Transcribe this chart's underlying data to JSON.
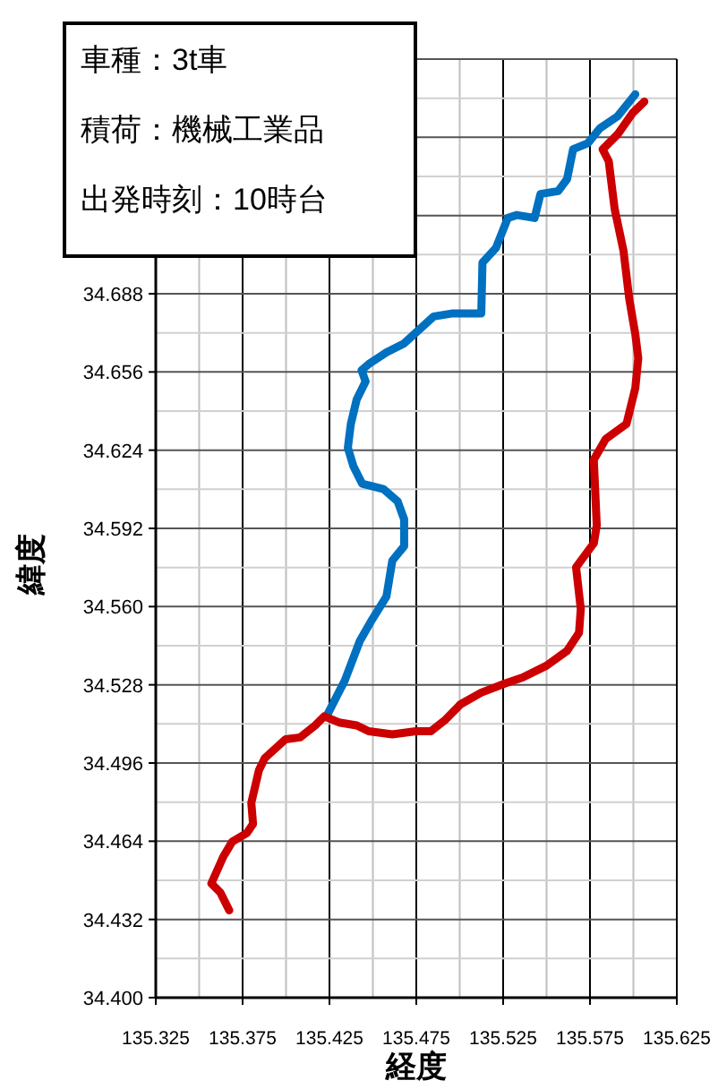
{
  "chart_data": {
    "type": "line",
    "xlabel": "経度",
    "ylabel": "緯度",
    "annotations": [
      "車種：3t車",
      "積荷：機械工業品",
      "出発時刻：10時台"
    ],
    "xlim": [
      135.325,
      135.625
    ],
    "xticks": [
      135.325,
      135.375,
      135.425,
      135.475,
      135.525,
      135.575,
      135.625
    ],
    "ylim": [
      34.4,
      34.784
    ],
    "yticks": [
      {
        "value": 34.4,
        "label": "34.400"
      },
      34.432,
      34.464,
      34.496,
      34.528,
      {
        "value": 34.56,
        "label": "34.560"
      },
      34.592,
      34.624,
      34.656,
      34.688,
      {
        "value": 34.72,
        "label": null
      },
      {
        "value": 34.752,
        "label": null
      },
      {
        "value": 34.784,
        "label": null
      }
    ],
    "grid": true,
    "series": [
      {
        "color": "#0070c0",
        "x": [
          135.4233,
          135.4338,
          135.4424,
          135.4489,
          135.4578,
          135.4612,
          135.468,
          135.468,
          135.4643,
          135.4561,
          135.4438,
          135.4387,
          135.4356,
          135.4373,
          135.4407,
          135.4458,
          135.4435,
          135.4476,
          135.4578,
          135.468,
          135.485,
          135.4953,
          135.5124,
          135.5131,
          135.5209,
          135.5277,
          135.5329,
          135.5431,
          135.5465,
          135.5567,
          135.5618,
          135.5653,
          135.5738,
          135.5807,
          135.5909,
          135.6011
        ],
        "values": [
          34.5151,
          34.5297,
          34.5458,
          34.5539,
          34.5641,
          34.5788,
          34.5847,
          34.5957,
          34.603,
          34.6081,
          34.6103,
          34.6176,
          34.625,
          34.6347,
          34.6448,
          34.6521,
          34.6567,
          34.6592,
          34.664,
          34.6677,
          34.6787,
          34.6799,
          34.6799,
          34.7007,
          34.7068,
          34.719,
          34.7202,
          34.719,
          34.7288,
          34.73,
          34.7349,
          34.7471,
          34.7496,
          34.7557,
          34.7606,
          34.7696
        ]
      },
      {
        "color": "#cc0000",
        "x": [
          135.3673,
          135.3622,
          135.357,
          135.3639,
          135.369,
          135.3775,
          135.381,
          135.38,
          135.3844,
          135.3878,
          135.3997,
          135.4082,
          135.4168,
          135.422,
          135.4305,
          135.4407,
          135.4476,
          135.4612,
          135.4748,
          135.4834,
          135.4919,
          135.5004,
          135.5124,
          135.526,
          135.5362,
          135.5499,
          135.5618,
          135.5687,
          135.5697,
          135.567,
          135.5772,
          135.5789,
          135.5772,
          135.5841,
          135.596,
          135.6011,
          135.6028,
          135.6011,
          135.5976,
          135.5943,
          135.5892,
          135.5858,
          135.5823,
          135.5909,
          135.5994,
          135.6063
        ],
        "values": [
          34.4357,
          34.443,
          34.4467,
          34.4577,
          34.4638,
          34.4674,
          34.4711,
          34.4797,
          34.4931,
          34.498,
          34.5057,
          34.5065,
          34.5114,
          34.5151,
          34.5126,
          34.5114,
          34.509,
          34.5077,
          34.509,
          34.509,
          34.5138,
          34.52,
          34.5248,
          34.5285,
          34.531,
          34.5358,
          34.5419,
          34.5493,
          34.559,
          34.5761,
          34.5859,
          34.5932,
          34.6201,
          34.6286,
          34.6347,
          34.6494,
          34.6616,
          34.6714,
          34.686,
          34.7056,
          34.7227,
          34.7422,
          34.7471,
          34.7532,
          34.7618,
          34.7666
        ]
      }
    ]
  }
}
